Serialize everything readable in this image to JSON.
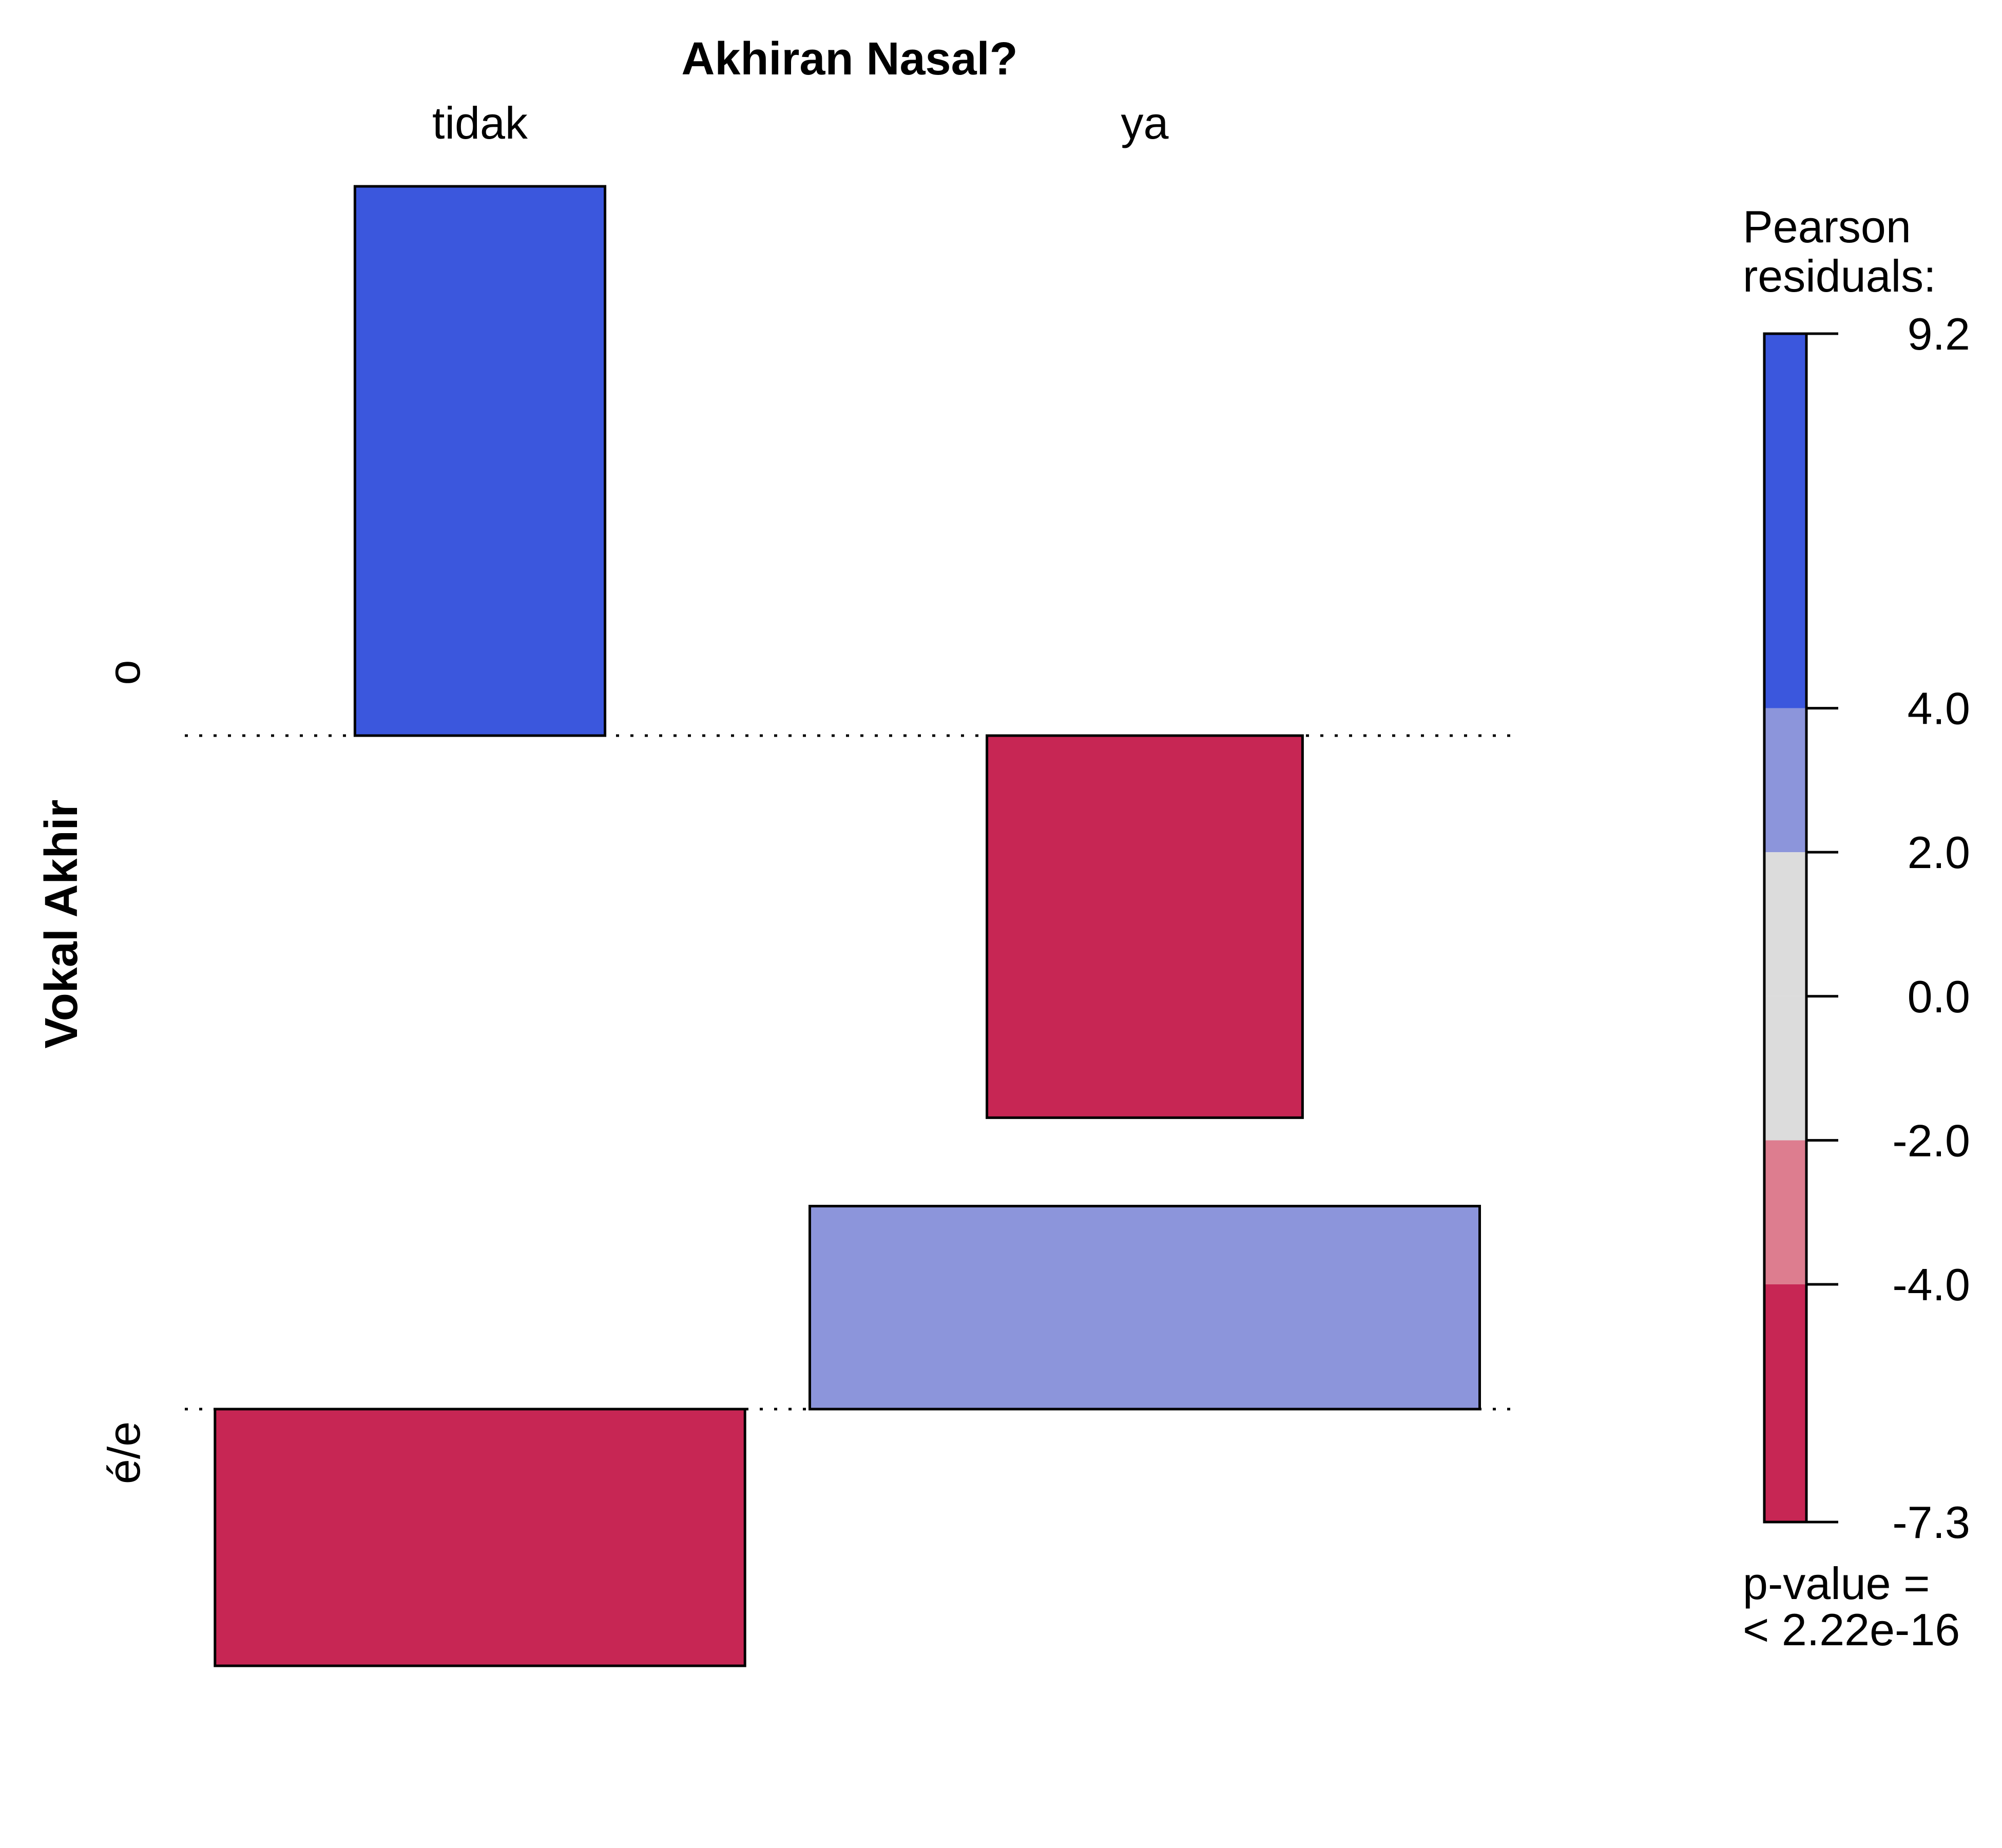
{
  "chart_data": {
    "type": "association",
    "column_variable": {
      "title": "Akhiran Nasal?",
      "levels": [
        "tidak",
        "ya"
      ]
    },
    "row_variable": {
      "title": "Vokal Akhir",
      "levels": [
        "o",
        "é/e"
      ]
    },
    "cells": [
      {
        "row": "o",
        "column": "tidak",
        "pearson_residual": 9.2,
        "relative_width": 0.84,
        "color": "#3B57DD"
      },
      {
        "row": "o",
        "column": "ya",
        "pearson_residual": -6.4,
        "relative_width": 1.06,
        "color": "#C72654"
      },
      {
        "row": "é/e",
        "column": "tidak",
        "pearson_residual": -4.3,
        "relative_width": 1.78,
        "color": "#C72654"
      },
      {
        "row": "é/e",
        "column": "ya",
        "pearson_residual": 3.4,
        "relative_width": 2.25,
        "color": "#8C95DB"
      }
    ],
    "legend": {
      "title": [
        "Pearson",
        "residuals:"
      ],
      "breaks": [
        9.2,
        4.0,
        2.0,
        0.0,
        -2.0,
        -4.0,
        -7.3
      ],
      "tick_labels": [
        "9.2",
        "4.0",
        "2.0",
        "0.0",
        "-2.0",
        "-4.0",
        "-7.3"
      ],
      "colors": [
        "#3B57DD",
        "#8C95DB",
        "#DCDCDC",
        "#DCDCDC",
        "#DD7D8F",
        "#C72654"
      ],
      "placement": "right"
    },
    "p_value": [
      "p-value =",
      "< 2.22e-16"
    ]
  }
}
